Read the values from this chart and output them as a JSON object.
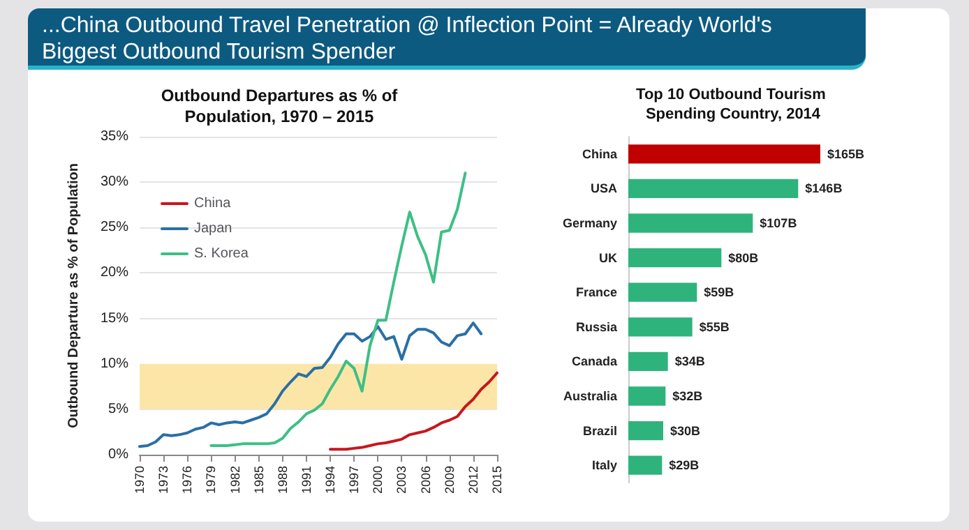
{
  "chart_data": [
    {
      "type": "line",
      "title": "Outbound Departures as % of Population, 1970 – 2015",
      "ylabel": "Outbound Departure as % of Population",
      "annotations": [
        "...China Outbound Travel Penetration @ Inflection Point = Already World's Biggest Outbound Tourism Spender"
      ],
      "xlim": [
        1970,
        2015
      ],
      "xticks": [
        1970,
        1973,
        1976,
        1979,
        1982,
        1985,
        1988,
        1991,
        1994,
        1997,
        2000,
        2003,
        2006,
        2009,
        2012,
        2015
      ],
      "ylim": [
        0,
        35
      ],
      "yticks": [
        {
          "value": 0,
          "label": "0%"
        },
        {
          "value": 5,
          "label": "5%"
        },
        {
          "value": 10,
          "label": "10%"
        },
        {
          "value": 15,
          "label": "15%"
        },
        {
          "value": 20,
          "label": "20%"
        },
        {
          "value": 25,
          "label": "25%"
        },
        {
          "value": 30,
          "label": "30%"
        },
        {
          "value": 35,
          "label": "35%"
        }
      ],
      "grid": "y",
      "legend": "top left",
      "marker": "none",
      "line_style": "solid",
      "bands": [
        {
          "axis": "y",
          "from": 5,
          "to": 10,
          "color": "#fbe6a8"
        }
      ],
      "series": [
        {
          "name": "China",
          "color": "#c8161d",
          "x": [
            1994,
            1995,
            1996,
            1997,
            1998,
            1999,
            2000,
            2001,
            2002,
            2003,
            2004,
            2005,
            2006,
            2007,
            2008,
            2009,
            2010,
            2011,
            2012,
            2013,
            2014,
            2015
          ],
          "values": [
            0.6,
            0.6,
            0.6,
            0.7,
            0.8,
            1.0,
            1.2,
            1.3,
            1.5,
            1.7,
            2.2,
            2.4,
            2.6,
            3.0,
            3.5,
            3.8,
            4.2,
            5.3,
            6.1,
            7.2,
            8.0,
            9.0
          ]
        },
        {
          "name": "Japan",
          "color": "#2a6fa5",
          "x": [
            1970,
            1971,
            1972,
            1973,
            1974,
            1975,
            1976,
            1977,
            1978,
            1979,
            1980,
            1981,
            1982,
            1983,
            1984,
            1985,
            1986,
            1987,
            1988,
            1989,
            1990,
            1991,
            1992,
            1993,
            1994,
            1995,
            1996,
            1997,
            1998,
            1999,
            2000,
            2001,
            2002,
            2003,
            2004,
            2005,
            2006,
            2007,
            2008,
            2009,
            2010,
            2011,
            2012,
            2013
          ],
          "values": [
            0.9,
            1.0,
            1.4,
            2.2,
            2.1,
            2.2,
            2.4,
            2.8,
            3.0,
            3.5,
            3.3,
            3.5,
            3.6,
            3.5,
            3.8,
            4.1,
            4.5,
            5.6,
            7.0,
            8.0,
            8.9,
            8.6,
            9.5,
            9.6,
            10.7,
            12.2,
            13.3,
            13.3,
            12.5,
            13.0,
            14.1,
            12.7,
            13.0,
            10.5,
            13.1,
            13.8,
            13.8,
            13.4,
            12.4,
            12.0,
            13.1,
            13.3,
            14.5,
            13.3
          ]
        },
        {
          "name": "S. Korea",
          "color": "#3dbf86",
          "x": [
            1979,
            1980,
            1981,
            1982,
            1983,
            1984,
            1985,
            1986,
            1987,
            1988,
            1989,
            1990,
            1991,
            1992,
            1993,
            1994,
            1995,
            1996,
            1997,
            1998,
            1999,
            2000,
            2001,
            2002,
            2003,
            2004,
            2005,
            2006,
            2007,
            2008,
            2009,
            2010,
            2011
          ],
          "values": [
            1.0,
            1.0,
            1.0,
            1.1,
            1.2,
            1.2,
            1.2,
            1.2,
            1.3,
            1.8,
            2.9,
            3.6,
            4.5,
            4.9,
            5.6,
            7.2,
            8.6,
            10.3,
            9.5,
            7.0,
            12.0,
            14.8,
            14.8,
            19.0,
            23.0,
            26.7,
            24.0,
            22.0,
            19.0,
            24.5,
            24.7,
            27.0,
            31.0
          ]
        }
      ]
    },
    {
      "type": "bar",
      "orientation": "horizontal",
      "title": "Top 10 Outbound Tourism Spending Country, 2014",
      "categories": [
        "China",
        "USA",
        "Germany",
        "UK",
        "France",
        "Russia",
        "Canada",
        "Australia",
        "Brazil",
        "Italy"
      ],
      "values": [
        165,
        146,
        107,
        80,
        59,
        55,
        34,
        32,
        30,
        29
      ],
      "colors": [
        "#c00000",
        "#2fb37c",
        "#2fb37c",
        "#2fb37c",
        "#2fb37c",
        "#2fb37c",
        "#2fb37c",
        "#2fb37c",
        "#2fb37c",
        "#2fb37c"
      ],
      "value_labels": [
        "$165B",
        "$146B",
        "$107B",
        "$80B",
        "$59B",
        "$55B",
        "$34B",
        "$32B",
        "$30B",
        "$29B"
      ]
    }
  ]
}
